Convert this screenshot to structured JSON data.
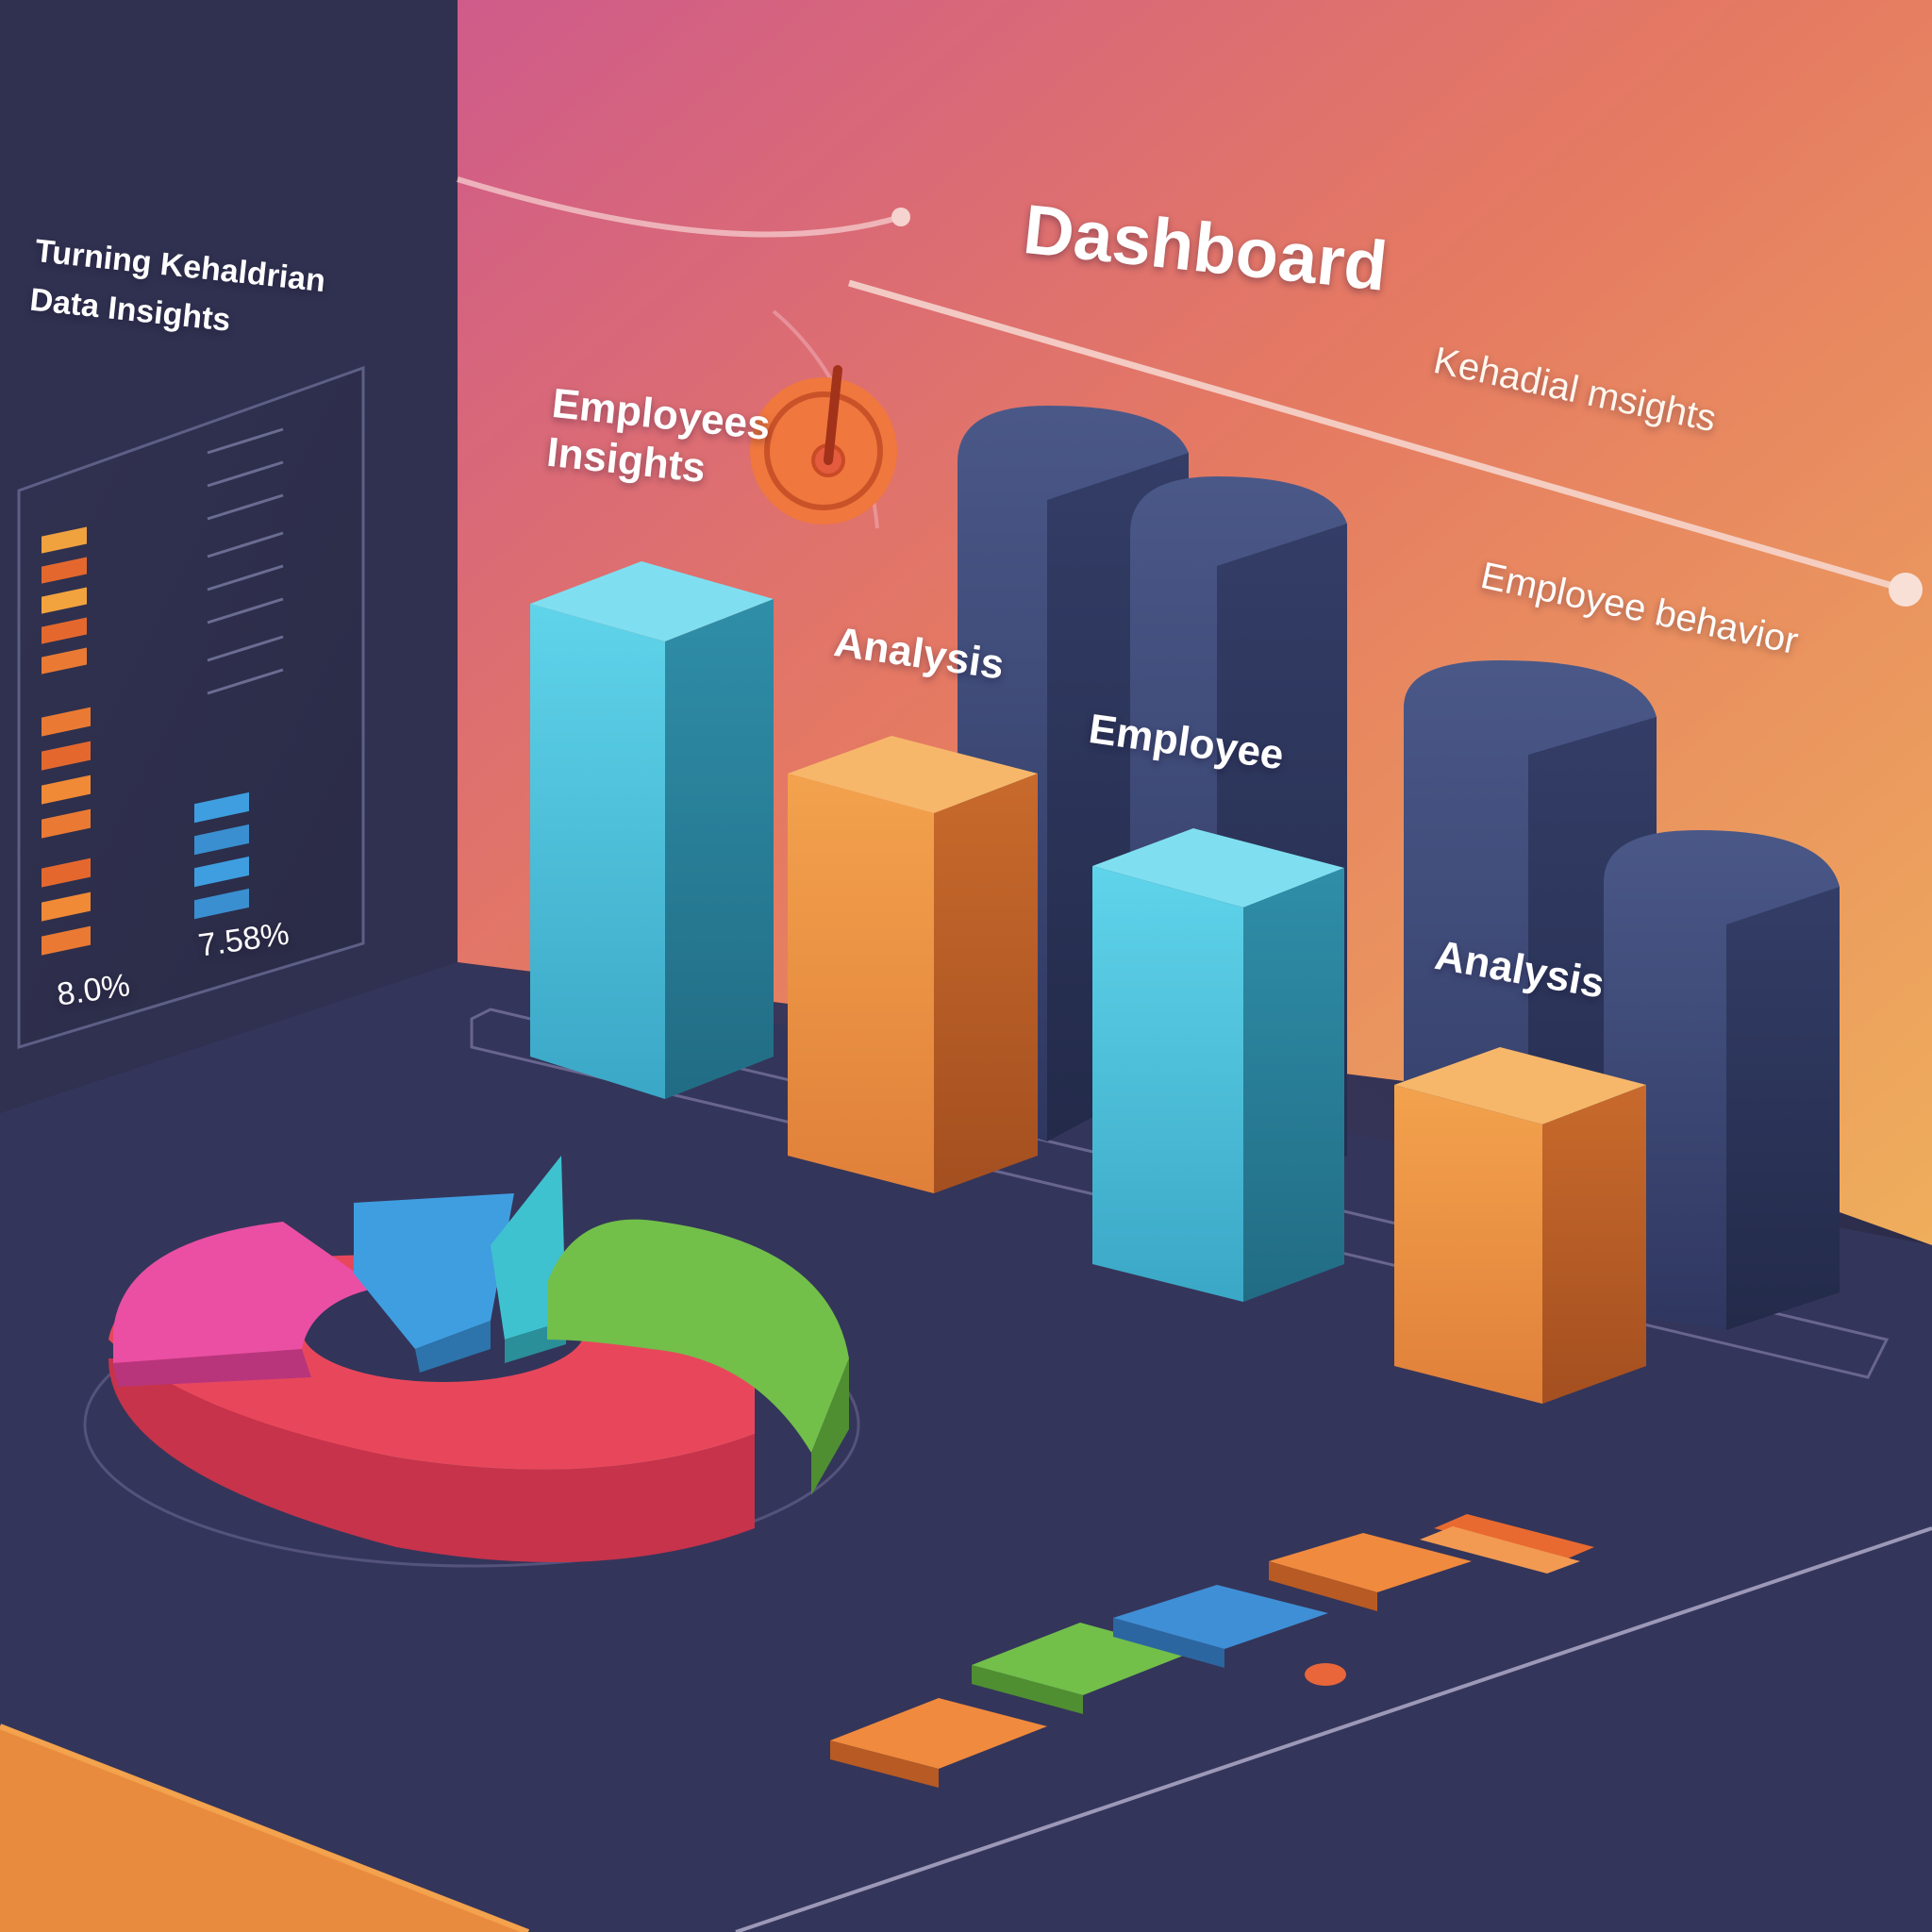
{
  "header": {
    "title": "Dashboard",
    "subtitle": "Kehadial msights"
  },
  "labels": {
    "employees_insights_line1": "Employees",
    "employees_insights_line2": "Insights",
    "analysis_1": "Analysis",
    "employee": "Employee",
    "analysis_2": "Analysis",
    "employee_behavior": "Employee behavior"
  },
  "side_panel": {
    "title_line1": "Turning Kehaldrian",
    "title_line2": "Data Insights",
    "stat_1": "8.0%",
    "stat_2": "7.58%"
  },
  "colors": {
    "background": "#2c2c4a",
    "cyan_bar": "#4cc3dc",
    "orange_bar": "#e98b3f",
    "navy_bar": "#3d4a78",
    "pie_red": "#e8475b",
    "pie_pink": "#ea4fa3",
    "pie_blue": "#3f9ee0",
    "pie_teal": "#3fc2cf",
    "pie_green": "#72bf4a",
    "gauge": "#f0773e"
  },
  "icons": [
    "gauge-icon"
  ]
}
